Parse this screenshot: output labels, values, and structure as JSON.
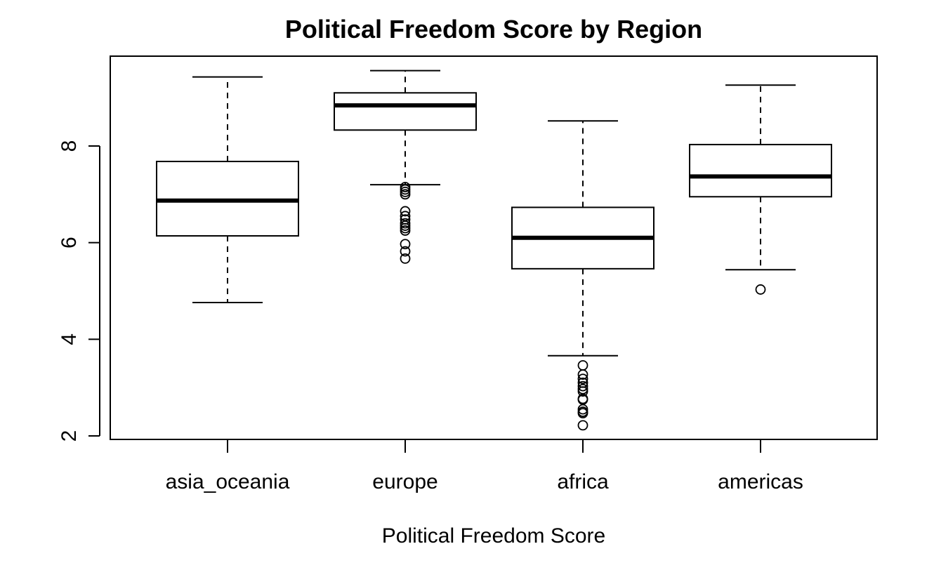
{
  "chart_data": {
    "type": "boxplot",
    "title": "Political Freedom Score by Region",
    "xlabel": "Political Freedom Score",
    "ylabel": "",
    "ylim": [
      2,
      9.8
    ],
    "yticks": [
      2,
      4,
      6,
      8
    ],
    "grid": false,
    "categories": [
      "asia_oceania",
      "europe",
      "africa",
      "americas"
    ],
    "boxes": [
      {
        "category": "asia_oceania",
        "whisker_low": 4.76,
        "q1": 6.14,
        "median": 6.87,
        "q3": 7.68,
        "whisker_high": 9.43,
        "outliers": []
      },
      {
        "category": "europe",
        "whisker_low": 7.2,
        "q1": 8.33,
        "median": 8.84,
        "q3": 9.1,
        "whisker_high": 9.56,
        "outliers": [
          7.15,
          7.1,
          7.05,
          7.0,
          6.65,
          6.55,
          6.48,
          6.4,
          6.35,
          6.3,
          6.25,
          5.97,
          5.82,
          5.67
        ]
      },
      {
        "category": "africa",
        "whisker_low": 3.66,
        "q1": 5.46,
        "median": 6.1,
        "q3": 6.73,
        "whisker_high": 8.52,
        "outliers": [
          3.46,
          3.27,
          3.18,
          3.1,
          3.03,
          2.97,
          2.92,
          2.77,
          2.75,
          2.55,
          2.5,
          2.47,
          2.22
        ]
      },
      {
        "category": "americas",
        "whisker_low": 5.44,
        "q1": 6.95,
        "median": 7.37,
        "q3": 8.03,
        "whisker_high": 9.26,
        "outliers": [
          5.03
        ]
      }
    ]
  }
}
